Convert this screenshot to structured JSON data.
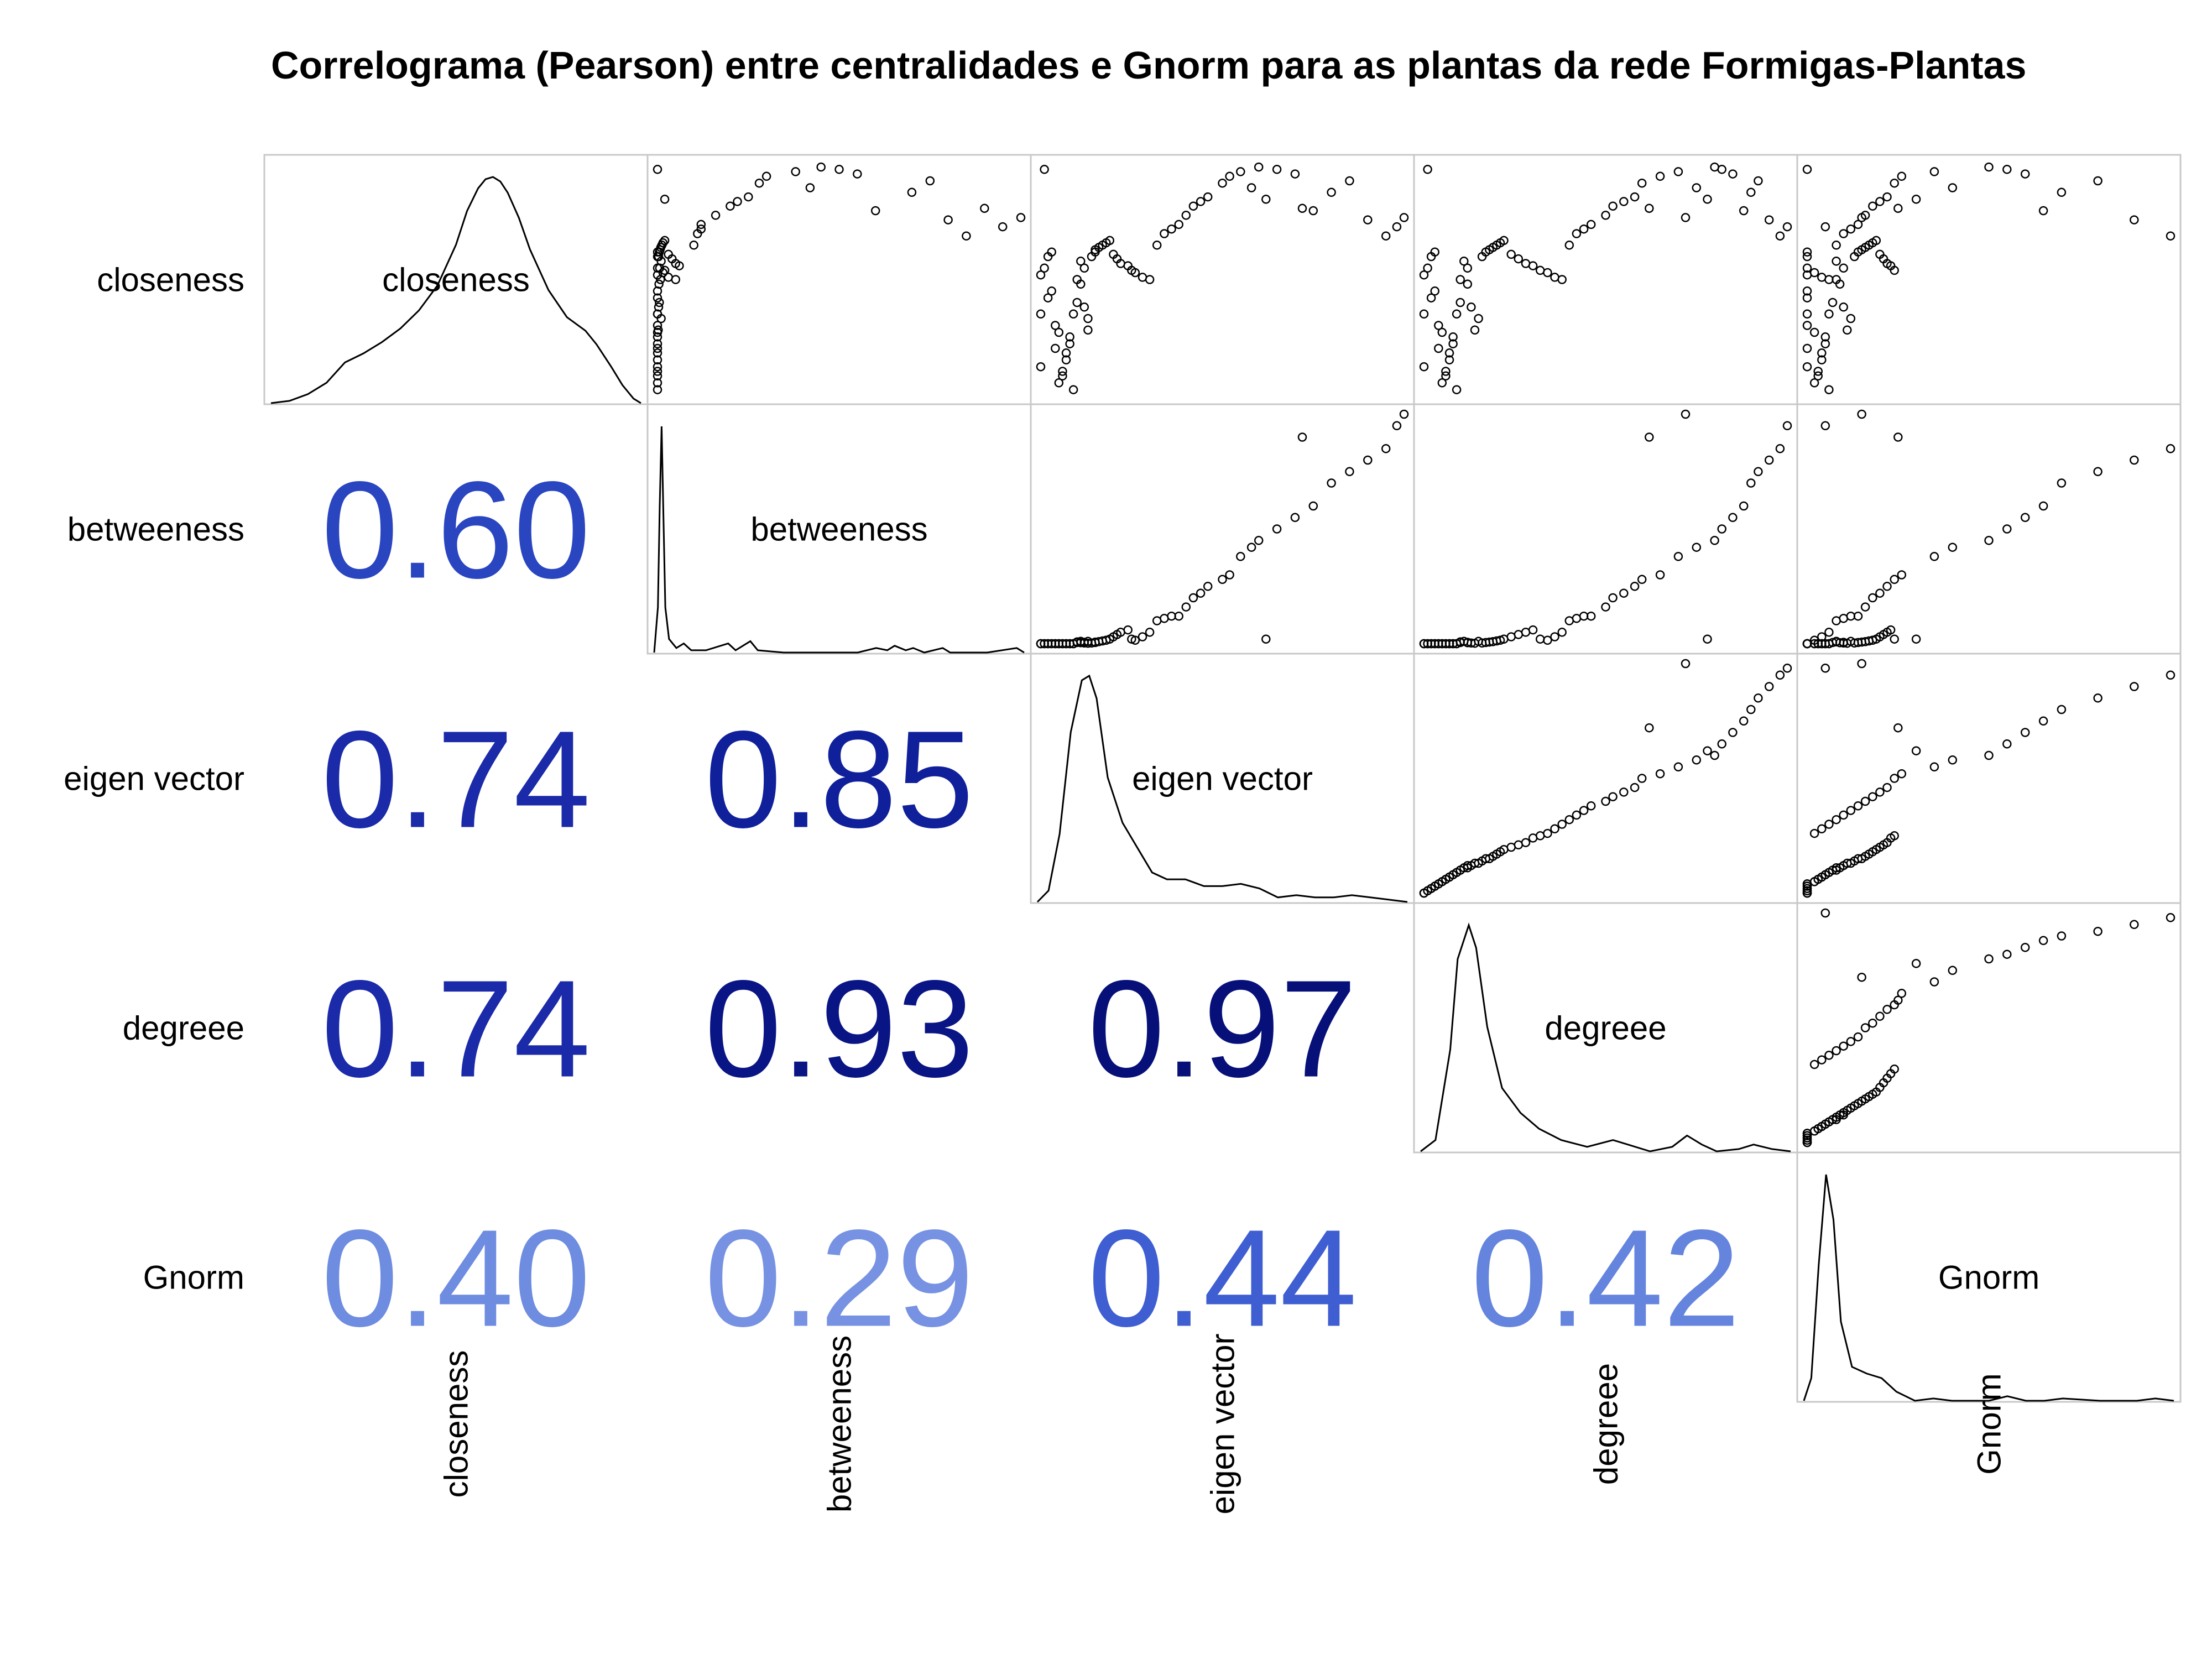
{
  "title": "Correlograma (Pearson) entre centralidades e Gnorm para as plantas da rede Formigas-Plantas",
  "chart_data": {
    "type": "scatter-matrix",
    "method": "Pearson",
    "variables": [
      "closeness",
      "betweeness",
      "eigen vector",
      "degreee",
      "Gnorm"
    ],
    "correlations": [
      {
        "row": "betweeness",
        "col": "closeness",
        "value": "0.60",
        "color": "#2a45c0"
      },
      {
        "row": "eigen vector",
        "col": "closeness",
        "value": "0.74",
        "color": "#1a2aa8"
      },
      {
        "row": "eigen vector",
        "col": "betweeness",
        "value": "0.85",
        "color": "#10209a"
      },
      {
        "row": "degreee",
        "col": "closeness",
        "value": "0.74",
        "color": "#1a2aa8"
      },
      {
        "row": "degreee",
        "col": "betweeness",
        "value": "0.93",
        "color": "#0a1585"
      },
      {
        "row": "degreee",
        "col": "eigen vector",
        "value": "0.97",
        "color": "#061078"
      },
      {
        "row": "Gnorm",
        "col": "closeness",
        "value": "0.40",
        "color": "#6e8ce0"
      },
      {
        "row": "Gnorm",
        "col": "betweeness",
        "value": "0.29",
        "color": "#7792e2"
      },
      {
        "row": "Gnorm",
        "col": "eigen vector",
        "value": "0.44",
        "color": "#3e5ed2"
      },
      {
        "row": "Gnorm",
        "col": "degreee",
        "value": "0.42",
        "color": "#6484de"
      }
    ],
    "densities": {
      "closeness": [
        [
          0,
          0
        ],
        [
          0.05,
          0.01
        ],
        [
          0.1,
          0.04
        ],
        [
          0.15,
          0.09
        ],
        [
          0.2,
          0.18
        ],
        [
          0.25,
          0.22
        ],
        [
          0.3,
          0.27
        ],
        [
          0.35,
          0.33
        ],
        [
          0.4,
          0.41
        ],
        [
          0.45,
          0.52
        ],
        [
          0.5,
          0.7
        ],
        [
          0.53,
          0.85
        ],
        [
          0.56,
          0.95
        ],
        [
          0.58,
          0.99
        ],
        [
          0.6,
          1.0
        ],
        [
          0.62,
          0.98
        ],
        [
          0.64,
          0.93
        ],
        [
          0.67,
          0.82
        ],
        [
          0.7,
          0.68
        ],
        [
          0.75,
          0.5
        ],
        [
          0.8,
          0.38
        ],
        [
          0.85,
          0.32
        ],
        [
          0.88,
          0.26
        ],
        [
          0.92,
          0.16
        ],
        [
          0.95,
          0.08
        ],
        [
          0.98,
          0.02
        ],
        [
          1,
          0
        ]
      ],
      "betweeness": [
        [
          0,
          0
        ],
        [
          0.01,
          0.2
        ],
        [
          0.015,
          0.65
        ],
        [
          0.02,
          1.0
        ],
        [
          0.025,
          0.6
        ],
        [
          0.03,
          0.2
        ],
        [
          0.04,
          0.06
        ],
        [
          0.06,
          0.02
        ],
        [
          0.08,
          0.04
        ],
        [
          0.1,
          0.01
        ],
        [
          0.14,
          0.01
        ],
        [
          0.2,
          0.04
        ],
        [
          0.22,
          0.01
        ],
        [
          0.26,
          0.05
        ],
        [
          0.28,
          0.01
        ],
        [
          0.35,
          0.0
        ],
        [
          0.55,
          0.0
        ],
        [
          0.6,
          0.02
        ],
        [
          0.63,
          0.01
        ],
        [
          0.65,
          0.03
        ],
        [
          0.68,
          0.01
        ],
        [
          0.7,
          0.02
        ],
        [
          0.73,
          0.0
        ],
        [
          0.78,
          0.02
        ],
        [
          0.8,
          0.0
        ],
        [
          0.9,
          0.0
        ],
        [
          0.98,
          0.02
        ],
        [
          1,
          0
        ]
      ],
      "eigen vector": [
        [
          0,
          0
        ],
        [
          0.03,
          0.05
        ],
        [
          0.06,
          0.3
        ],
        [
          0.09,
          0.75
        ],
        [
          0.12,
          0.98
        ],
        [
          0.14,
          1.0
        ],
        [
          0.16,
          0.9
        ],
        [
          0.19,
          0.55
        ],
        [
          0.23,
          0.35
        ],
        [
          0.27,
          0.24
        ],
        [
          0.31,
          0.13
        ],
        [
          0.35,
          0.1
        ],
        [
          0.4,
          0.1
        ],
        [
          0.45,
          0.07
        ],
        [
          0.5,
          0.07
        ],
        [
          0.55,
          0.08
        ],
        [
          0.6,
          0.06
        ],
        [
          0.65,
          0.02
        ],
        [
          0.7,
          0.03
        ],
        [
          0.75,
          0.02
        ],
        [
          0.8,
          0.02
        ],
        [
          0.85,
          0.03
        ],
        [
          0.9,
          0.02
        ],
        [
          0.95,
          0.01
        ],
        [
          1,
          0
        ]
      ],
      "degreee": [
        [
          0,
          0
        ],
        [
          0.04,
          0.05
        ],
        [
          0.08,
          0.45
        ],
        [
          0.1,
          0.85
        ],
        [
          0.13,
          1.0
        ],
        [
          0.15,
          0.9
        ],
        [
          0.18,
          0.55
        ],
        [
          0.22,
          0.28
        ],
        [
          0.27,
          0.17
        ],
        [
          0.32,
          0.1
        ],
        [
          0.38,
          0.05
        ],
        [
          0.45,
          0.02
        ],
        [
          0.52,
          0.05
        ],
        [
          0.56,
          0.03
        ],
        [
          0.62,
          0.0
        ],
        [
          0.68,
          0.02
        ],
        [
          0.72,
          0.07
        ],
        [
          0.76,
          0.03
        ],
        [
          0.8,
          0.0
        ],
        [
          0.86,
          0.01
        ],
        [
          0.9,
          0.03
        ],
        [
          0.95,
          0.01
        ],
        [
          1,
          0
        ]
      ],
      "Gnorm": [
        [
          0,
          0
        ],
        [
          0.02,
          0.1
        ],
        [
          0.04,
          0.6
        ],
        [
          0.06,
          1.0
        ],
        [
          0.08,
          0.8
        ],
        [
          0.1,
          0.35
        ],
        [
          0.13,
          0.15
        ],
        [
          0.17,
          0.12
        ],
        [
          0.21,
          0.1
        ],
        [
          0.25,
          0.04
        ],
        [
          0.3,
          0.0
        ],
        [
          0.35,
          0.01
        ],
        [
          0.4,
          0.0
        ],
        [
          0.5,
          0.0
        ],
        [
          0.55,
          0.02
        ],
        [
          0.6,
          0.0
        ],
        [
          0.65,
          0.0
        ],
        [
          0.7,
          0.01
        ],
        [
          0.8,
          0.0
        ],
        [
          0.9,
          0.0
        ],
        [
          0.95,
          0.01
        ],
        [
          1,
          0
        ]
      ]
    },
    "observations": {
      "closeness": [
        0.12,
        0.35,
        0.52,
        0.55,
        0.98,
        0.6,
        0.42,
        0.62,
        0.45,
        0.3,
        0.2,
        0.27,
        0.05,
        0.08,
        0.1,
        0.15,
        0.18,
        0.22,
        0.25,
        0.02,
        0.35,
        0.4,
        0.5,
        0.58,
        0.48,
        0.55,
        0.38,
        0.28,
        0.33,
        0.6,
        0.62,
        0.63,
        0.64,
        0.65,
        0.66,
        0.67,
        0.61,
        0.59,
        0.57,
        0.56,
        0.54,
        0.53,
        0.51,
        0.5,
        0.65,
        0.7,
        0.72,
        0.74,
        0.78,
        0.82,
        0.84,
        0.86,
        0.92,
        0.95,
        0.97,
        0.9,
        0.99,
        0.98,
        0.96,
        0.8,
        0.88,
        0.93,
        0.76,
        0.69,
        0.73,
        0.77,
        0.81,
        0.85
      ],
      "betweeness": [
        0.0,
        0.0,
        0.0,
        0.0,
        0.0,
        0.0,
        0.0,
        0.0,
        0.0,
        0.0,
        0.0,
        0.0,
        0.0,
        0.0,
        0.0,
        0.0,
        0.0,
        0.0,
        0.0,
        0.0,
        0.0,
        0.005,
        0.008,
        0.01,
        0.004,
        0.006,
        0.003,
        0.002,
        0.01,
        0.003,
        0.005,
        0.007,
        0.009,
        0.012,
        0.015,
        0.02,
        0.03,
        0.04,
        0.05,
        0.06,
        0.02,
        0.015,
        0.03,
        0.05,
        0.1,
        0.11,
        0.12,
        0.12,
        0.16,
        0.2,
        0.22,
        0.25,
        0.28,
        0.3,
        0.38,
        0.42,
        0.45,
        0.5,
        0.55,
        0.6,
        0.7,
        0.75,
        0.8,
        0.85,
        0.95,
        1.0,
        0.9,
        0.02
      ],
      "eigen vector": [
        0.0,
        0.0,
        0.0,
        0.01,
        0.01,
        0.02,
        0.02,
        0.03,
        0.03,
        0.04,
        0.04,
        0.05,
        0.05,
        0.06,
        0.06,
        0.07,
        0.07,
        0.08,
        0.08,
        0.09,
        0.09,
        0.1,
        0.1,
        0.11,
        0.11,
        0.12,
        0.12,
        0.13,
        0.13,
        0.14,
        0.15,
        0.15,
        0.16,
        0.17,
        0.18,
        0.19,
        0.2,
        0.21,
        0.22,
        0.24,
        0.25,
        0.26,
        0.28,
        0.3,
        0.32,
        0.34,
        0.36,
        0.38,
        0.4,
        0.42,
        0.44,
        0.46,
        0.5,
        0.52,
        0.55,
        0.58,
        0.6,
        0.65,
        0.7,
        0.75,
        0.8,
        0.85,
        0.9,
        0.95,
        0.98,
        1.0,
        0.72,
        0.62
      ],
      "degreee": [
        0.0,
        0.0,
        0.0,
        0.01,
        0.01,
        0.02,
        0.02,
        0.03,
        0.03,
        0.04,
        0.04,
        0.05,
        0.05,
        0.06,
        0.06,
        0.07,
        0.07,
        0.08,
        0.08,
        0.09,
        0.09,
        0.1,
        0.1,
        0.11,
        0.12,
        0.12,
        0.13,
        0.14,
        0.15,
        0.16,
        0.17,
        0.18,
        0.19,
        0.2,
        0.21,
        0.22,
        0.24,
        0.26,
        0.28,
        0.3,
        0.32,
        0.34,
        0.36,
        0.38,
        0.4,
        0.42,
        0.44,
        0.46,
        0.5,
        0.52,
        0.55,
        0.58,
        0.6,
        0.65,
        0.7,
        0.75,
        0.8,
        0.82,
        0.85,
        0.88,
        0.9,
        0.92,
        0.95,
        0.98,
        1.0,
        0.72,
        0.62,
        0.78
      ],
      "Gnorm": [
        0.0,
        0.0,
        0.0,
        0.0,
        0.0,
        0.0,
        0.0,
        0.0,
        0.0,
        0.0,
        0.0,
        0.02,
        0.02,
        0.03,
        0.03,
        0.04,
        0.04,
        0.05,
        0.05,
        0.06,
        0.06,
        0.07,
        0.08,
        0.08,
        0.09,
        0.1,
        0.1,
        0.11,
        0.12,
        0.13,
        0.14,
        0.15,
        0.16,
        0.17,
        0.18,
        0.19,
        0.2,
        0.21,
        0.22,
        0.23,
        0.24,
        0.02,
        0.04,
        0.06,
        0.08,
        0.1,
        0.12,
        0.14,
        0.16,
        0.18,
        0.2,
        0.22,
        0.24,
        0.26,
        0.35,
        0.4,
        0.5,
        0.55,
        0.6,
        0.65,
        0.7,
        0.8,
        0.9,
        1.0,
        0.05,
        0.15,
        0.25,
        0.3
      ]
    }
  }
}
